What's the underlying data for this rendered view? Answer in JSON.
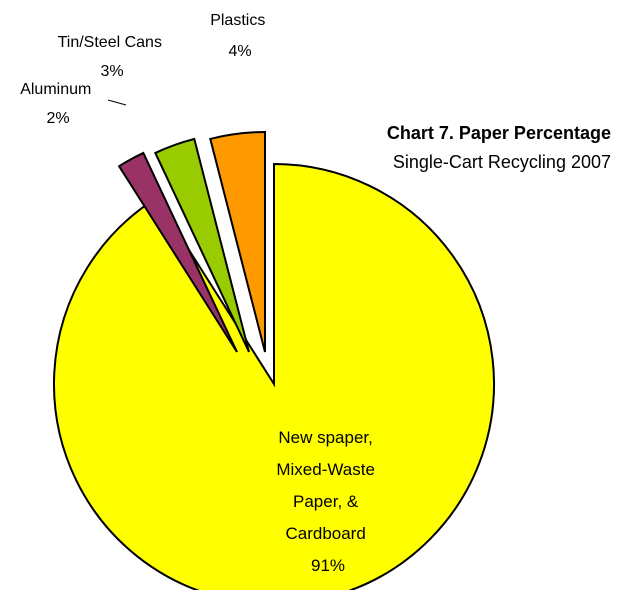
{
  "chart_data": {
    "type": "pie",
    "title": "Chart 7. Paper Percentage",
    "subtitle": "Single-Cart Recycling 2007",
    "categories": [
      "Newspaper, Mixed-Waste Paper, & Cardboard",
      "Aluminum",
      "Tin/Steel Cans",
      "Plastics"
    ],
    "values": [
      91,
      2,
      3,
      4
    ],
    "unit": "%",
    "slice_colors": [
      "#ffff00",
      "#993366",
      "#99cc00",
      "#ff9900"
    ],
    "exploded": true,
    "labels": [
      {
        "lines": [
          "New spaper,",
          "Mixed-Waste",
          "Paper, &",
          "Cardboard"
        ],
        "value": "91%"
      },
      {
        "lines": [
          "Aluminum"
        ],
        "value": "2%"
      },
      {
        "lines": [
          "Tin/Steel Cans"
        ],
        "value": "3%"
      },
      {
        "lines": [
          "Plastics"
        ],
        "value": "4%"
      }
    ]
  }
}
